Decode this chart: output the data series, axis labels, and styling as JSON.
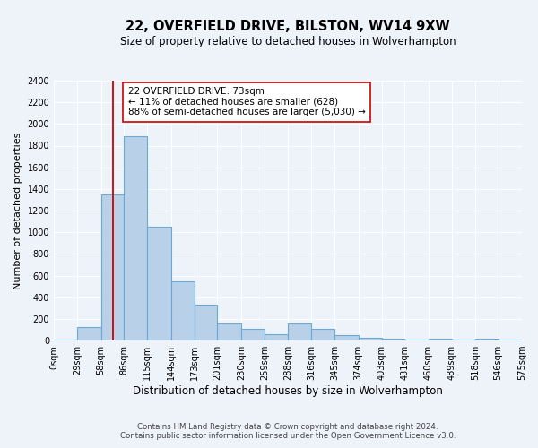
{
  "title": "22, OVERFIELD DRIVE, BILSTON, WV14 9XW",
  "subtitle": "Size of property relative to detached houses in Wolverhampton",
  "xlabel": "Distribution of detached houses by size in Wolverhampton",
  "ylabel": "Number of detached properties",
  "bin_edges": [
    0,
    29,
    58,
    86,
    115,
    144,
    173,
    201,
    230,
    259,
    288,
    316,
    345,
    374,
    403,
    431,
    460,
    489,
    518,
    546,
    575
  ],
  "bar_heights": [
    10,
    125,
    1350,
    1890,
    1050,
    550,
    335,
    160,
    105,
    60,
    160,
    105,
    50,
    25,
    20,
    10,
    20,
    10,
    20,
    10
  ],
  "bar_color": "#b8d0e8",
  "bar_edge_color": "#6aaad4",
  "bar_edge_width": 0.8,
  "red_line_x": 73,
  "annotation_line1": "22 OVERFIELD DRIVE: 73sqm",
  "annotation_line2": "← 11% of detached houses are smaller (628)",
  "annotation_line3": "88% of semi-detached houses are larger (5,030) →",
  "annotation_box_edge_color": "#cc0000",
  "annotation_box_fill": "#ffffff",
  "ylim": [
    0,
    2400
  ],
  "yticks": [
    0,
    200,
    400,
    600,
    800,
    1000,
    1200,
    1400,
    1600,
    1800,
    2000,
    2200,
    2400
  ],
  "xtick_labels": [
    "0sqm",
    "29sqm",
    "58sqm",
    "86sqm",
    "115sqm",
    "144sqm",
    "173sqm",
    "201sqm",
    "230sqm",
    "259sqm",
    "288sqm",
    "316sqm",
    "345sqm",
    "374sqm",
    "403sqm",
    "431sqm",
    "460sqm",
    "489sqm",
    "518sqm",
    "546sqm",
    "575sqm"
  ],
  "footer_line1": "Contains HM Land Registry data © Crown copyright and database right 2024.",
  "footer_line2": "Contains public sector information licensed under the Open Government Licence v3.0.",
  "background_color": "#eef2f9",
  "plot_bg_color": "#eef2f9",
  "grid_color": "#ffffff",
  "title_fontsize": 10.5,
  "subtitle_fontsize": 8.5,
  "xlabel_fontsize": 8.5,
  "ylabel_fontsize": 8,
  "tick_fontsize": 7,
  "annotation_fontsize": 7.5,
  "footer_fontsize": 6.2
}
